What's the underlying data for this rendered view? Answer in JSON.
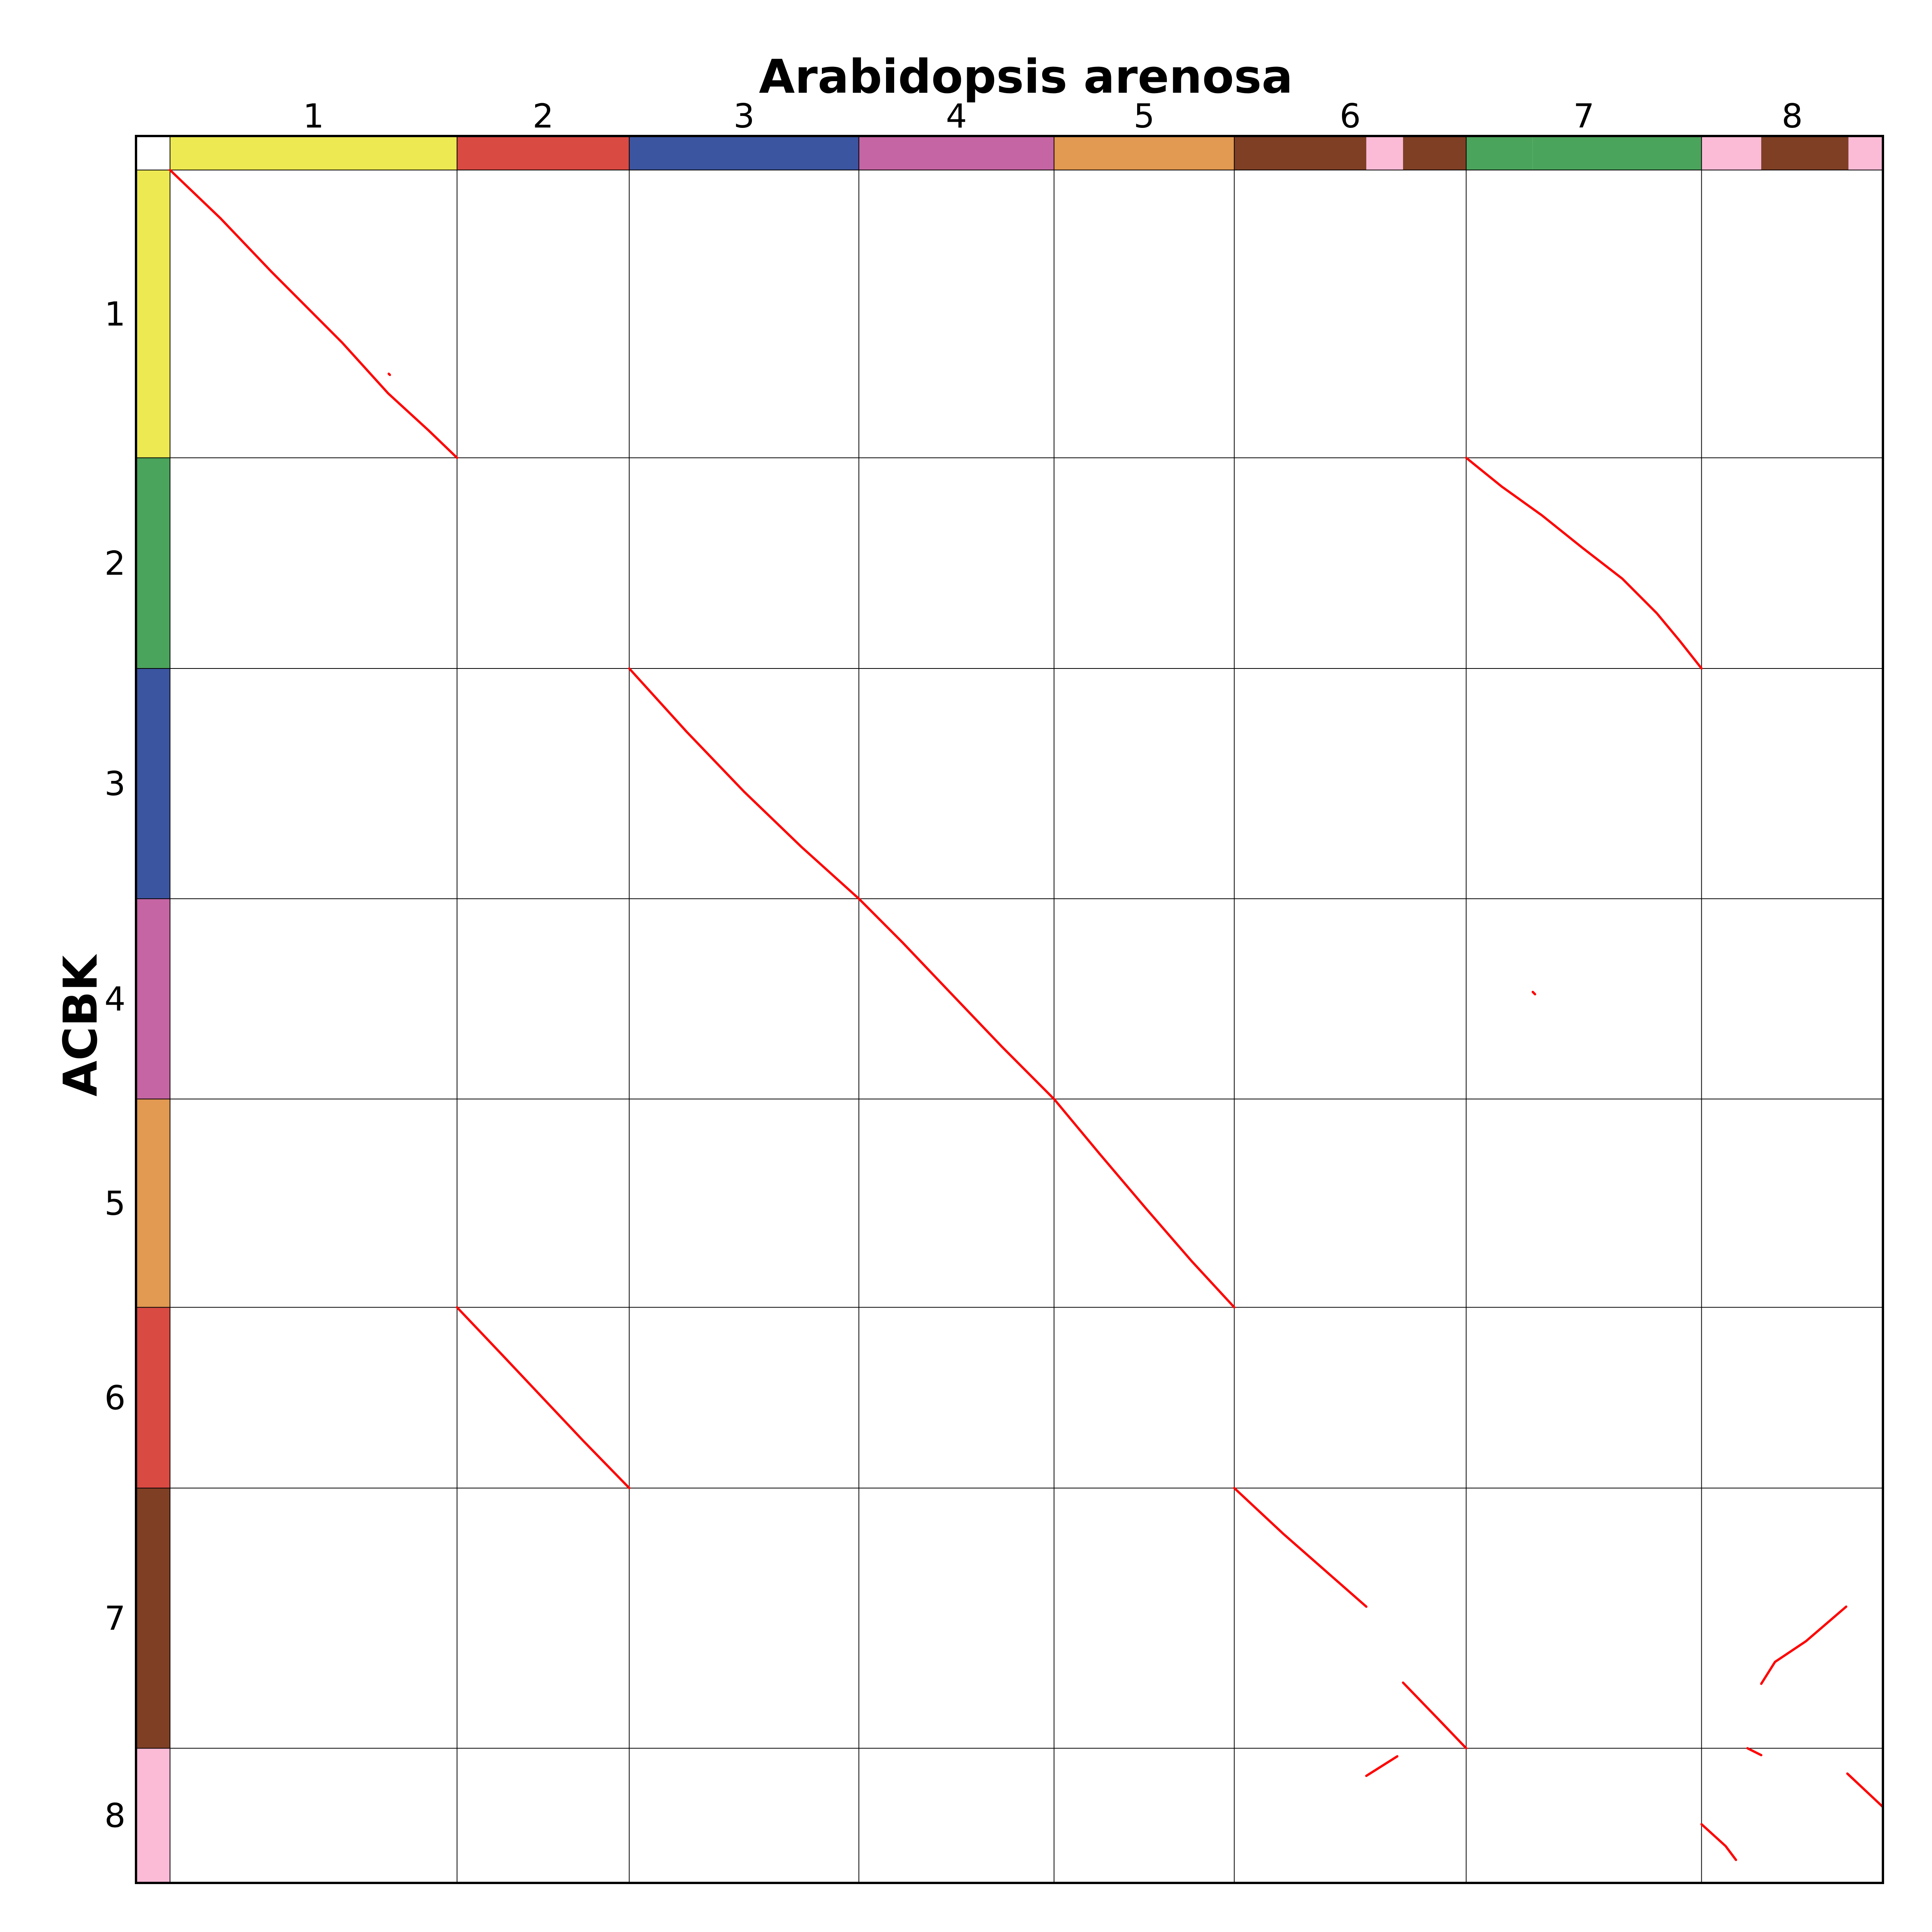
{
  "chart_data": {
    "type": "scatter",
    "title": "Arabidopsis arenosa",
    "xlabel": "Arabidopsis arenosa",
    "ylabel": "ACBK",
    "grid": true,
    "x_chromosomes": [
      {
        "label": "1",
        "start": 0,
        "end": 25
      },
      {
        "label": "2",
        "start": 25,
        "end": 40
      },
      {
        "label": "3",
        "start": 40,
        "end": 60
      },
      {
        "label": "4",
        "start": 60,
        "end": 77
      },
      {
        "label": "5",
        "start": 77,
        "end": 92.7
      },
      {
        "label": "6",
        "start": 92.7,
        "end": 112.9
      },
      {
        "label": "7",
        "start": 112.9,
        "end": 133.4
      },
      {
        "label": "8",
        "start": 133.4,
        "end": 149.2
      }
    ],
    "y_chromosomes": [
      {
        "label": "1",
        "start": 0,
        "end": 25
      },
      {
        "label": "2",
        "start": 25,
        "end": 43.3
      },
      {
        "label": "3",
        "start": 43.3,
        "end": 63.3
      },
      {
        "label": "4",
        "start": 63.3,
        "end": 80.7
      },
      {
        "label": "5",
        "start": 80.7,
        "end": 98.8
      },
      {
        "label": "6",
        "start": 98.8,
        "end": 114.5
      },
      {
        "label": "7",
        "start": 114.5,
        "end": 137.1
      },
      {
        "label": "8",
        "start": 137.1,
        "end": 148.8
      }
    ],
    "x_color_bands": [
      {
        "start": 0,
        "end": 25,
        "color": "#ece953"
      },
      {
        "start": 25,
        "end": 40,
        "color": "#d94a43"
      },
      {
        "start": 40,
        "end": 60,
        "color": "#3c55a0"
      },
      {
        "start": 60,
        "end": 77,
        "color": "#c665a3"
      },
      {
        "start": 77,
        "end": 92.7,
        "color": "#e29951"
      },
      {
        "start": 92.7,
        "end": 104.2,
        "color": "#7f3f25"
      },
      {
        "start": 104.2,
        "end": 107.4,
        "color": "#fbbbd7"
      },
      {
        "start": 107.4,
        "end": 112.9,
        "color": "#7f3f25"
      },
      {
        "start": 112.9,
        "end": 118.7,
        "color": "#4ba45c"
      },
      {
        "start": 118.7,
        "end": 133.4,
        "color": "#4ba45c"
      },
      {
        "start": 133.4,
        "end": 138.6,
        "color": "#fbbbd7"
      },
      {
        "start": 138.6,
        "end": 146.2,
        "color": "#7f3f25"
      },
      {
        "start": 146.2,
        "end": 149.2,
        "color": "#fbbbd7"
      }
    ],
    "y_color_bands": [
      {
        "start": 0,
        "end": 25,
        "color": "#ece953"
      },
      {
        "start": 25,
        "end": 43.3,
        "color": "#4ba45c"
      },
      {
        "start": 43.3,
        "end": 63.3,
        "color": "#3c55a0"
      },
      {
        "start": 63.3,
        "end": 80.7,
        "color": "#c665a3"
      },
      {
        "start": 80.7,
        "end": 98.8,
        "color": "#e29951"
      },
      {
        "start": 98.8,
        "end": 114.5,
        "color": "#d94a43"
      },
      {
        "start": 114.5,
        "end": 137.1,
        "color": "#7f3f25"
      },
      {
        "start": 137.1,
        "end": 148.8,
        "color": "#fbbbd7"
      }
    ],
    "series": [
      {
        "color": "#ff0000",
        "segments": [
          {
            "x": [
              0,
              4.4,
              8.8,
              15,
              19,
              22.5,
              25
            ],
            "y": [
              0,
              4.2,
              8.8,
              15,
              19.4,
              22.6,
              25
            ]
          },
          {
            "x": [
              19.05,
              19.15
            ],
            "y": [
              17.7,
              17.8
            ]
          },
          {
            "x": [
              112.9,
              116,
              119.5,
              123,
              126.5,
              129.5,
              131.5,
              133.4
            ],
            "y": [
              25,
              27.5,
              30,
              32.8,
              35.5,
              38.5,
              40.9,
              43.3
            ]
          },
          {
            "x": [
              40,
              45,
              50,
              55,
              60
            ],
            "y": [
              43.3,
              48.8,
              54,
              58.8,
              63.3
            ]
          },
          {
            "x": [
              60,
              63.8,
              68,
              72.5,
              77
            ],
            "y": [
              63.3,
              67.1,
              71.5,
              76.2,
              80.7
            ]
          },
          {
            "x": [
              118.7,
              118.9
            ],
            "y": [
              71.4,
              71.6
            ]
          },
          {
            "x": [
              77,
              81,
              85,
              89,
              92.7
            ],
            "y": [
              80.7,
              85.5,
              90.2,
              94.8,
              98.8
            ]
          },
          {
            "x": [
              25,
              29,
              32.5,
              36,
              40
            ],
            "y": [
              98.8,
              103,
              106.7,
              110.4,
              114.5
            ]
          },
          {
            "x": [
              92.7,
              97,
              101,
              104.2
            ],
            "y": [
              114.5,
              118.5,
              122,
              124.8
            ]
          },
          {
            "x": [
              107.4,
              110.5,
              112.9
            ],
            "y": [
              131.4,
              134.6,
              137.1
            ]
          },
          {
            "x": [
              138.6,
              139.8,
              142.5,
              146
            ],
            "y": [
              131.5,
              129.6,
              127.8,
              124.8
            ]
          },
          {
            "x": [
              104.2,
              106.9
            ],
            "y": [
              139.5,
              137.8
            ]
          },
          {
            "x": [
              137.4,
              138.6
            ],
            "y": [
              137.1,
              137.7
            ]
          },
          {
            "x": [
              133.4,
              135.5,
              136.4
            ],
            "y": [
              143.7,
              145.6,
              146.8
            ]
          },
          {
            "x": [
              146.1,
              149.2
            ],
            "y": [
              139.3,
              142.2
            ]
          }
        ]
      }
    ]
  }
}
